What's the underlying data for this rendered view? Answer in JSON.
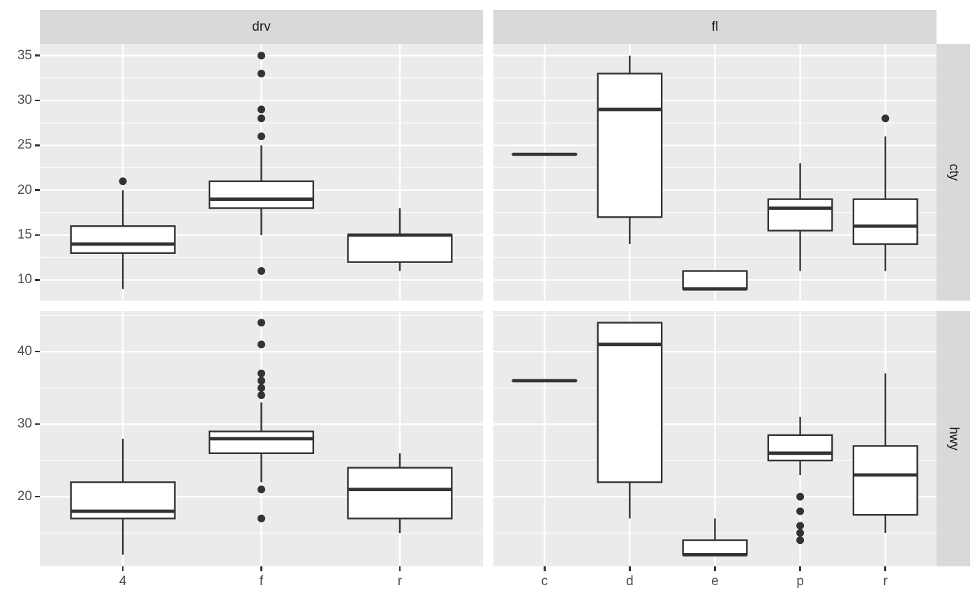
{
  "chart_data": {
    "type": "boxplot",
    "title": "",
    "faceting_note": "2x2 facet grid; facet columns are the grouping variables (drv, fl) on x; facet rows are the measured variables (cty, hwy) on y",
    "style": {
      "panel_background": "#EBEBEB",
      "strip_background": "#D9D9D9",
      "grid_color": "#FFFFFF",
      "box_stroke": "#333333",
      "box_fill": "#FFFFFF",
      "axis_text_color": "#4D4D4D",
      "strip_text_color": "#1A1A1A",
      "figure_background": "#FFFFFF",
      "grid": "major and minor horizontal white lines; vertical white line at each category"
    },
    "cols": [
      {
        "label": "drv",
        "categories": [
          "4",
          "f",
          "r"
        ]
      },
      {
        "label": "fl",
        "categories": [
          "c",
          "d",
          "e",
          "p",
          "r"
        ]
      }
    ],
    "rows": [
      {
        "label": "cty",
        "ylim": [
          7.7,
          36.3
        ],
        "major_ticks": [
          10,
          15,
          20,
          25,
          30,
          35
        ],
        "minor_ticks": [
          12.5,
          17.5,
          22.5,
          27.5,
          32.5
        ]
      },
      {
        "label": "hwy",
        "ylim": [
          10.4,
          45.6
        ],
        "major_ticks": [
          20,
          30,
          40
        ],
        "minor_ticks": [
          15,
          25,
          35,
          45
        ]
      }
    ],
    "boxes": {
      "cty.drv": [
        {
          "category": "4",
          "whisker_low": 9,
          "q1": 13,
          "median": 14,
          "q3": 16,
          "whisker_high": 20,
          "outliers": [
            21
          ]
        },
        {
          "category": "f",
          "whisker_low": 15,
          "q1": 18,
          "median": 19,
          "q3": 21,
          "whisker_high": 25,
          "outliers": [
            11,
            26,
            28,
            29,
            33,
            35
          ]
        },
        {
          "category": "r",
          "whisker_low": 11,
          "q1": 12,
          "median": 15,
          "q3": 15,
          "whisker_high": 18,
          "outliers": []
        }
      ],
      "cty.fl": [
        {
          "category": "c",
          "whisker_low": 24,
          "q1": 24,
          "median": 24,
          "q3": 24,
          "whisker_high": 24,
          "outliers": []
        },
        {
          "category": "d",
          "whisker_low": 14,
          "q1": 17,
          "median": 29,
          "q3": 33,
          "whisker_high": 35,
          "outliers": []
        },
        {
          "category": "e",
          "whisker_low": 9,
          "q1": 9,
          "median": 9,
          "q3": 11,
          "whisker_high": 11,
          "outliers": []
        },
        {
          "category": "p",
          "whisker_low": 11,
          "q1": 15.5,
          "median": 18,
          "q3": 19,
          "whisker_high": 23,
          "outliers": []
        },
        {
          "category": "r",
          "whisker_low": 11,
          "q1": 14,
          "median": 16,
          "q3": 19,
          "whisker_high": 26,
          "outliers": [
            28
          ]
        }
      ],
      "hwy.drv": [
        {
          "category": "4",
          "whisker_low": 12,
          "q1": 17,
          "median": 18,
          "q3": 22,
          "whisker_high": 28,
          "outliers": []
        },
        {
          "category": "f",
          "whisker_low": 22,
          "q1": 26,
          "median": 28,
          "q3": 29,
          "whisker_high": 33,
          "outliers": [
            17,
            21,
            34,
            35,
            36,
            37,
            41,
            44
          ]
        },
        {
          "category": "r",
          "whisker_low": 15,
          "q1": 17,
          "median": 21,
          "q3": 24,
          "whisker_high": 26,
          "outliers": []
        }
      ],
      "hwy.fl": [
        {
          "category": "c",
          "whisker_low": 36,
          "q1": 36,
          "median": 36,
          "q3": 36,
          "whisker_high": 36,
          "outliers": []
        },
        {
          "category": "d",
          "whisker_low": 17,
          "q1": 22,
          "median": 41,
          "q3": 44,
          "whisker_high": 44,
          "outliers": []
        },
        {
          "category": "e",
          "whisker_low": 12,
          "q1": 12,
          "median": 12,
          "q3": 14,
          "whisker_high": 17,
          "outliers": []
        },
        {
          "category": "p",
          "whisker_low": 23,
          "q1": 25,
          "median": 26,
          "q3": 28.5,
          "whisker_high": 31,
          "outliers": [
            20,
            18,
            16,
            15,
            14
          ]
        },
        {
          "category": "r",
          "whisker_low": 15,
          "q1": 17.5,
          "median": 23,
          "q3": 27,
          "whisker_high": 37,
          "outliers": []
        }
      ]
    }
  }
}
